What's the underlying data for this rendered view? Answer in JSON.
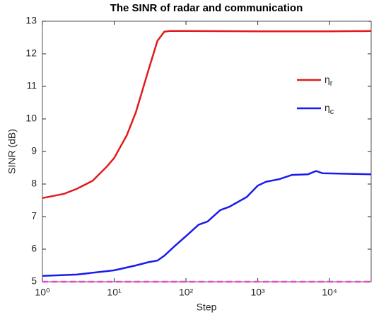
{
  "chart_data": {
    "type": "line",
    "title": "The SINR of radar and communication",
    "xlabel": "Step",
    "ylabel": "SINR (dB)",
    "xscale": "log",
    "xlim": [
      1,
      38000
    ],
    "ylim": [
      5,
      13
    ],
    "xticks": [
      {
        "value": 1,
        "label": "10⁰"
      },
      {
        "value": 10,
        "label": "10¹"
      },
      {
        "value": 100,
        "label": "10²"
      },
      {
        "value": 1000,
        "label": "10³"
      },
      {
        "value": 10000,
        "label": "10⁴"
      }
    ],
    "yticks": [
      5,
      6,
      7,
      8,
      9,
      10,
      11,
      12,
      13
    ],
    "series": [
      {
        "name": "ηr",
        "color": "#e31a1c",
        "x": [
          1,
          2,
          3,
          5,
          8,
          10,
          15,
          20,
          30,
          40,
          50,
          60,
          100,
          1000,
          10000,
          38000
        ],
        "values": [
          7.57,
          7.7,
          7.85,
          8.1,
          8.55,
          8.8,
          9.5,
          10.2,
          11.5,
          12.4,
          12.68,
          12.7,
          12.7,
          12.69,
          12.69,
          12.7
        ]
      },
      {
        "name": "ηc",
        "color": "#1a1aee",
        "x": [
          1,
          3,
          10,
          20,
          30,
          40,
          50,
          70,
          100,
          150,
          200,
          300,
          400,
          700,
          1000,
          1300,
          2000,
          3000,
          5000,
          6500,
          8000,
          38000
        ],
        "values": [
          5.18,
          5.22,
          5.35,
          5.5,
          5.6,
          5.65,
          5.8,
          6.1,
          6.4,
          6.75,
          6.85,
          7.2,
          7.3,
          7.6,
          7.95,
          8.07,
          8.15,
          8.28,
          8.3,
          8.4,
          8.33,
          8.3
        ]
      },
      {
        "color": "#ee44cc",
        "dashed": true,
        "x": [
          1,
          38000
        ],
        "values": [
          5.0,
          5.0
        ]
      }
    ]
  }
}
